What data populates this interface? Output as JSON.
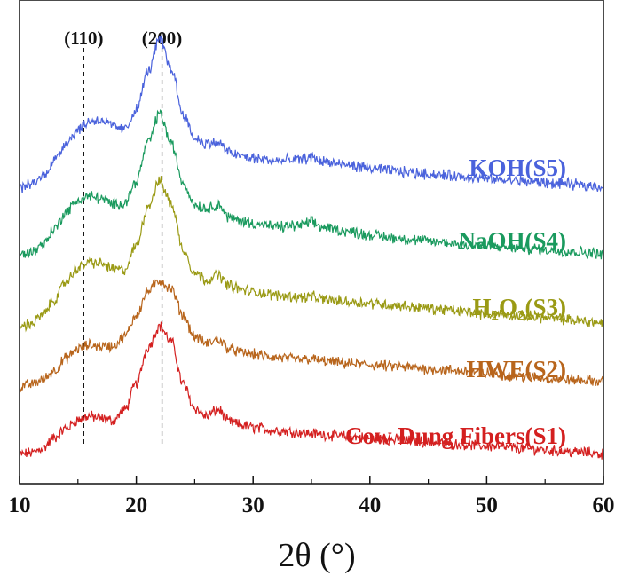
{
  "chart_data": {
    "type": "line",
    "xlabel": "2θ (°)",
    "ylabel": "",
    "xlim": [
      10,
      60
    ],
    "xticks": [
      "10",
      "20",
      "30",
      "40",
      "50",
      "60"
    ],
    "yticks_shown": false,
    "grid": false,
    "reference_lines": [
      {
        "x": 15.5,
        "label": "(110)"
      },
      {
        "x": 22.2,
        "label": "(200)"
      }
    ],
    "x": [
      10,
      11,
      12,
      13,
      14,
      15,
      16,
      17,
      18,
      19,
      20,
      21,
      22,
      23,
      24,
      25,
      26,
      27,
      28,
      29,
      30,
      32,
      34,
      35,
      36,
      38,
      40,
      42,
      44,
      46,
      48,
      50,
      52,
      54,
      56,
      58,
      60
    ],
    "series": [
      {
        "name": "Cow Dung Fibers(S1)",
        "label": "Cow Dung Fibers(S1)",
        "color": "#d42020",
        "label_sub": [],
        "values": [
          0.0,
          0.3,
          1.2,
          3.2,
          5.0,
          6.6,
          7.3,
          6.8,
          6.5,
          8.5,
          13.5,
          20.5,
          24.5,
          21.5,
          13.5,
          8.8,
          7.3,
          8.6,
          6.2,
          5.6,
          5.1,
          4.6,
          4.2,
          4.0,
          3.8,
          3.4,
          3.1,
          2.8,
          2.5,
          2.2,
          1.9,
          1.6,
          1.3,
          1.0,
          0.7,
          0.4,
          0.1
        ]
      },
      {
        "name": "HWE(S2)",
        "label": "HWE(S2)",
        "color": "#b8651c",
        "label_sub": [],
        "values": [
          0.0,
          0.5,
          1.4,
          3.2,
          5.5,
          7.3,
          8.0,
          7.8,
          7.8,
          9.6,
          13.8,
          18.3,
          20.3,
          18.6,
          13.7,
          9.6,
          8.3,
          9.0,
          7.3,
          6.6,
          6.2,
          5.6,
          5.2,
          5.3,
          4.9,
          4.5,
          4.2,
          3.9,
          3.6,
          3.3,
          3.0,
          2.6,
          2.2,
          1.9,
          1.6,
          1.3,
          1.0
        ]
      },
      {
        "name": "H2O2(S3)",
        "label": "H2O2(S3)",
        "color": "#9a9a14",
        "label_sub": [
          "2",
          "2"
        ],
        "values": [
          0.0,
          0.6,
          2.2,
          5.2,
          8.6,
          11.2,
          12.3,
          12.0,
          11.0,
          10.8,
          15.5,
          23.0,
          27.8,
          23.5,
          14.8,
          10.3,
          9.0,
          9.8,
          7.8,
          7.1,
          6.6,
          6.0,
          5.6,
          5.7,
          5.2,
          4.8,
          4.5,
          4.1,
          3.7,
          3.3,
          2.9,
          2.5,
          2.2,
          1.9,
          1.5,
          1.1,
          0.7
        ]
      },
      {
        "name": "NaOH(S4)",
        "label": "NaOH(S4)",
        "color": "#1a9a5e",
        "label_sub": [],
        "values": [
          0.0,
          0.5,
          2.0,
          5.0,
          8.2,
          10.4,
          11.2,
          10.7,
          9.6,
          9.9,
          14.0,
          21.5,
          27.0,
          21.2,
          13.8,
          9.6,
          8.8,
          9.6,
          7.0,
          6.4,
          6.0,
          5.3,
          5.6,
          6.2,
          5.2,
          4.5,
          3.8,
          3.2,
          2.8,
          2.4,
          2.0,
          1.7,
          1.4,
          1.1,
          0.8,
          0.5,
          0.2
        ]
      },
      {
        "name": "KOH(S5)",
        "label": "KOH(S5)",
        "color": "#4a62dc",
        "label_sub": [],
        "values": [
          0.0,
          0.7,
          2.3,
          5.4,
          8.7,
          11.2,
          12.8,
          13.0,
          11.8,
          11.2,
          15.0,
          22.3,
          28.4,
          22.8,
          14.2,
          9.5,
          8.5,
          8.7,
          6.8,
          6.1,
          5.7,
          5.2,
          5.4,
          5.9,
          5.1,
          4.4,
          3.8,
          3.3,
          2.9,
          2.5,
          2.2,
          1.8,
          1.5,
          1.2,
          0.9,
          0.6,
          0.3
        ]
      }
    ]
  }
}
